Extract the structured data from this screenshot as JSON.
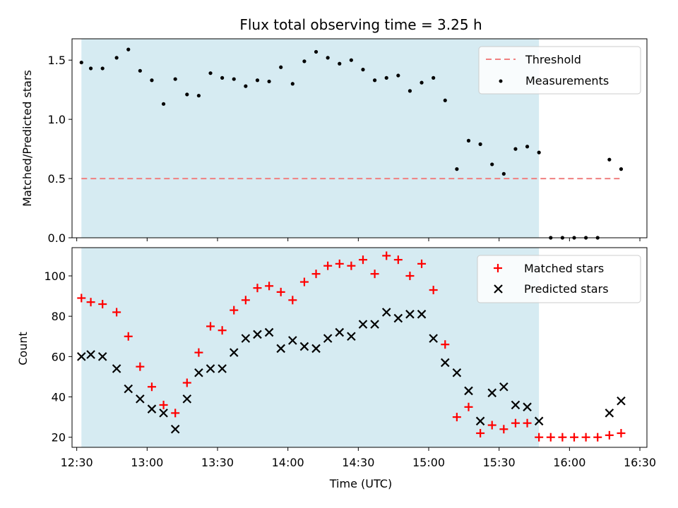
{
  "chart_data": [
    {
      "type": "scatter",
      "title": "Flux total observing time = 3.25 h",
      "ylabel": "Matched/Predicted stars",
      "xlabel": "",
      "ylim": [
        0,
        1.68
      ],
      "xlim": [
        "12:28",
        "16:33"
      ],
      "yticks": [
        "0.0",
        "0.5",
        "1.0",
        "1.5"
      ],
      "shaded_interval": [
        "12:32",
        "15:47"
      ],
      "shade_color": "#add8e6",
      "legend_position": "top-right",
      "threshold": {
        "name": "Threshold",
        "y": 0.5,
        "x_from": "12:32",
        "x_to": "16:22",
        "color": "#f08080"
      },
      "series": [
        {
          "name": "Measurements",
          "color": "#000000",
          "x": [
            "12:32",
            "12:36",
            "12:41",
            "12:47",
            "12:52",
            "12:57",
            "13:02",
            "13:07",
            "13:12",
            "13:17",
            "13:22",
            "13:27",
            "13:32",
            "13:37",
            "13:42",
            "13:47",
            "13:52",
            "13:57",
            "14:02",
            "14:07",
            "14:12",
            "14:17",
            "14:22",
            "14:27",
            "14:32",
            "14:37",
            "14:42",
            "14:47",
            "14:52",
            "14:57",
            "15:02",
            "15:07",
            "15:12",
            "15:17",
            "15:22",
            "15:27",
            "15:32",
            "15:37",
            "15:42",
            "15:47",
            "15:52",
            "15:57",
            "16:02",
            "16:07",
            "16:12",
            "16:17",
            "16:22"
          ],
          "y": [
            1.48,
            1.43,
            1.43,
            1.52,
            1.59,
            1.41,
            1.33,
            1.13,
            1.34,
            1.21,
            1.2,
            1.39,
            1.35,
            1.34,
            1.28,
            1.33,
            1.32,
            1.44,
            1.3,
            1.49,
            1.57,
            1.52,
            1.47,
            1.5,
            1.42,
            1.33,
            1.35,
            1.37,
            1.24,
            1.31,
            1.35,
            1.16,
            0.58,
            0.82,
            0.79,
            0.62,
            0.54,
            0.75,
            0.77,
            0.72,
            0,
            0,
            0,
            0,
            0,
            0.66,
            0.58
          ]
        }
      ]
    },
    {
      "type": "scatter",
      "title": "",
      "ylabel": "Count",
      "xlabel": "Time (UTC)",
      "ylim": [
        15,
        114
      ],
      "xlim": [
        "12:28",
        "16:33"
      ],
      "xticks": [
        "12:30",
        "13:00",
        "13:30",
        "14:00",
        "14:30",
        "15:00",
        "15:30",
        "16:00",
        "16:30"
      ],
      "yticks": [
        "20",
        "40",
        "60",
        "80",
        "100"
      ],
      "shaded_interval": [
        "12:32",
        "15:47"
      ],
      "shade_color": "#add8e6",
      "legend_position": "top-right",
      "series": [
        {
          "name": "Matched stars",
          "marker": "+",
          "color": "#ff0000",
          "x": [
            "12:32",
            "12:36",
            "12:41",
            "12:47",
            "12:52",
            "12:57",
            "13:02",
            "13:07",
            "13:12",
            "13:17",
            "13:22",
            "13:27",
            "13:32",
            "13:37",
            "13:42",
            "13:47",
            "13:52",
            "13:57",
            "14:02",
            "14:07",
            "14:12",
            "14:17",
            "14:22",
            "14:27",
            "14:32",
            "14:37",
            "14:42",
            "14:47",
            "14:52",
            "14:57",
            "15:02",
            "15:07",
            "15:12",
            "15:17",
            "15:22",
            "15:27",
            "15:32",
            "15:37",
            "15:42",
            "15:47",
            "15:52",
            "15:57",
            "16:02",
            "16:07",
            "16:12",
            "16:17",
            "16:22"
          ],
          "y": [
            89,
            87,
            86,
            82,
            70,
            55,
            45,
            36,
            32,
            47,
            62,
            75,
            73,
            83,
            88,
            94,
            95,
            92,
            88,
            97,
            101,
            105,
            106,
            105,
            108,
            101,
            110,
            108,
            100,
            106,
            93,
            66,
            30,
            35,
            22,
            26,
            24,
            27,
            27,
            20,
            20,
            20,
            20,
            20,
            20,
            21,
            22
          ]
        },
        {
          "name": "Predicted stars",
          "marker": "x",
          "color": "#000000",
          "x": [
            "12:32",
            "12:36",
            "12:41",
            "12:47",
            "12:52",
            "12:57",
            "13:02",
            "13:07",
            "13:12",
            "13:17",
            "13:22",
            "13:27",
            "13:32",
            "13:37",
            "13:42",
            "13:47",
            "13:52",
            "13:57",
            "14:02",
            "14:07",
            "14:12",
            "14:17",
            "14:22",
            "14:27",
            "14:32",
            "14:37",
            "14:42",
            "14:47",
            "14:52",
            "14:57",
            "15:02",
            "15:07",
            "15:12",
            "15:17",
            "15:22",
            "15:27",
            "15:32",
            "15:37",
            "15:42",
            "15:47",
            "16:17",
            "16:22"
          ],
          "y": [
            60,
            61,
            60,
            54,
            44,
            39,
            34,
            32,
            24,
            39,
            52,
            54,
            54,
            62,
            69,
            71,
            72,
            64,
            68,
            65,
            64,
            69,
            72,
            70,
            76,
            76,
            82,
            79,
            81,
            81,
            69,
            57,
            52,
            43,
            28,
            42,
            45,
            36,
            35,
            28,
            32,
            38
          ]
        }
      ]
    }
  ]
}
